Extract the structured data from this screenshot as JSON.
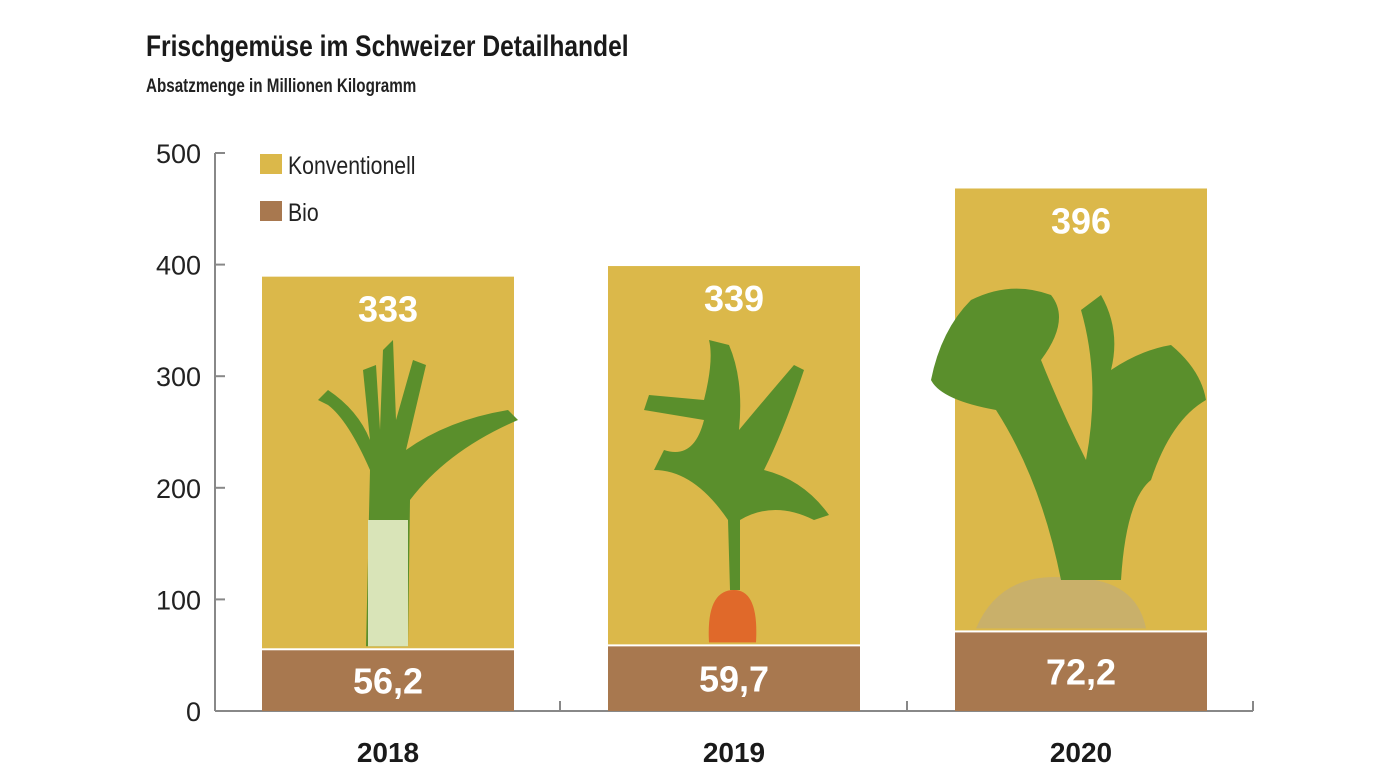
{
  "chart_data": {
    "type": "bar",
    "stacked": true,
    "title": "Frischgemüse im Schweizer Detailhandel",
    "subtitle": "Absatzmenge in Millionen Kilogramm",
    "categories": [
      "2018",
      "2019",
      "2020"
    ],
    "series": [
      {
        "name": "Bio",
        "values": [
          56.2,
          59.7,
          72.2
        ],
        "labels": [
          "56,2",
          "59,7",
          "72,2"
        ],
        "color": "#a8784f"
      },
      {
        "name": "Konventionell",
        "values": [
          333,
          339,
          396
        ],
        "labels": [
          "333",
          "339",
          "396"
        ],
        "color": "#dbb84a"
      }
    ],
    "ylim": [
      0,
      500
    ],
    "yticks": [
      "0",
      "100",
      "200",
      "300",
      "400",
      "500"
    ],
    "legend": "top-left",
    "grid": false,
    "illustrations": [
      "leek-icon",
      "carrot-icon",
      "celeriac-icon"
    ]
  }
}
